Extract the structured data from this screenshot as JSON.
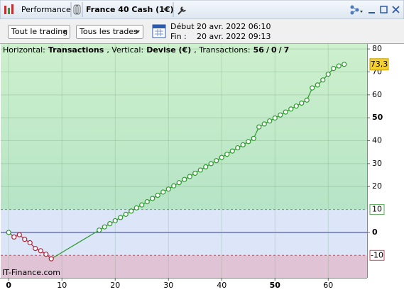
{
  "window": {
    "tab": "Performance",
    "instrument": "France 40 Cash (1€)"
  },
  "toolbar": {
    "filter_trading": "Tout le trading",
    "filter_trades": "Tous les trades",
    "start_label": "Début :",
    "start": "20 avr. 2022 06:10",
    "end_label": "Fin :",
    "end": "20 avr. 2022 09:13"
  },
  "chart_data": {
    "type": "line",
    "info_parts": [
      "Horizontal:",
      "Transactions",
      ", Vertical:",
      "Devise (€)",
      ", Transactions:"
    ],
    "trade_counts": [
      56,
      0,
      7
    ],
    "trade_count_colors": [
      "#2a9a2a",
      "#2a5ab0",
      "#c0202a"
    ],
    "count_separator": "/",
    "watermark": "IT-Finance.com",
    "x": [
      0,
      1,
      2,
      3,
      4,
      5,
      6,
      7,
      8,
      17,
      18,
      19,
      20,
      21,
      22,
      23,
      24,
      25,
      26,
      27,
      28,
      29,
      30,
      31,
      32,
      33,
      34,
      35,
      36,
      37,
      38,
      39,
      40,
      41,
      42,
      43,
      44,
      45,
      46,
      47,
      48,
      49,
      50,
      51,
      52,
      53,
      54,
      55,
      56,
      57,
      58,
      59,
      60,
      61,
      62,
      63
    ],
    "values": [
      0,
      -2,
      -1,
      -3,
      -4.5,
      -7,
      -8,
      -9.5,
      -11.5,
      1.0,
      2.4,
      3.8,
      5.1,
      6.5,
      7.9,
      9.3,
      10.7,
      12.0,
      13.4,
      14.8,
      16.2,
      17.6,
      18.9,
      20.3,
      21.7,
      23.1,
      24.4,
      25.8,
      27.2,
      28.6,
      30.0,
      31.3,
      32.7,
      34.1,
      35.5,
      36.9,
      38.2,
      39.6,
      41.0,
      46.0,
      47.3,
      48.6,
      49.9,
      51.2,
      52.5,
      53.8,
      55.1,
      56.4,
      57.7,
      63.0,
      64.3,
      66.5,
      69.0,
      71.5,
      72.6,
      73.3
    ],
    "last_label": {
      "value": 73.3,
      "label": "73,3"
    },
    "color_gain": "#2a9a2a",
    "color_loss": "#b0233a",
    "thresholds": [
      10,
      -10
    ],
    "xlim": [
      -1.5,
      67.3
    ],
    "ylim": [
      -19.8,
      82.2
    ],
    "xticks": [
      0,
      10,
      20,
      30,
      40,
      50,
      60
    ],
    "yticks": [
      0,
      20,
      30,
      40,
      50,
      60,
      70,
      80
    ],
    "grid": true
  }
}
